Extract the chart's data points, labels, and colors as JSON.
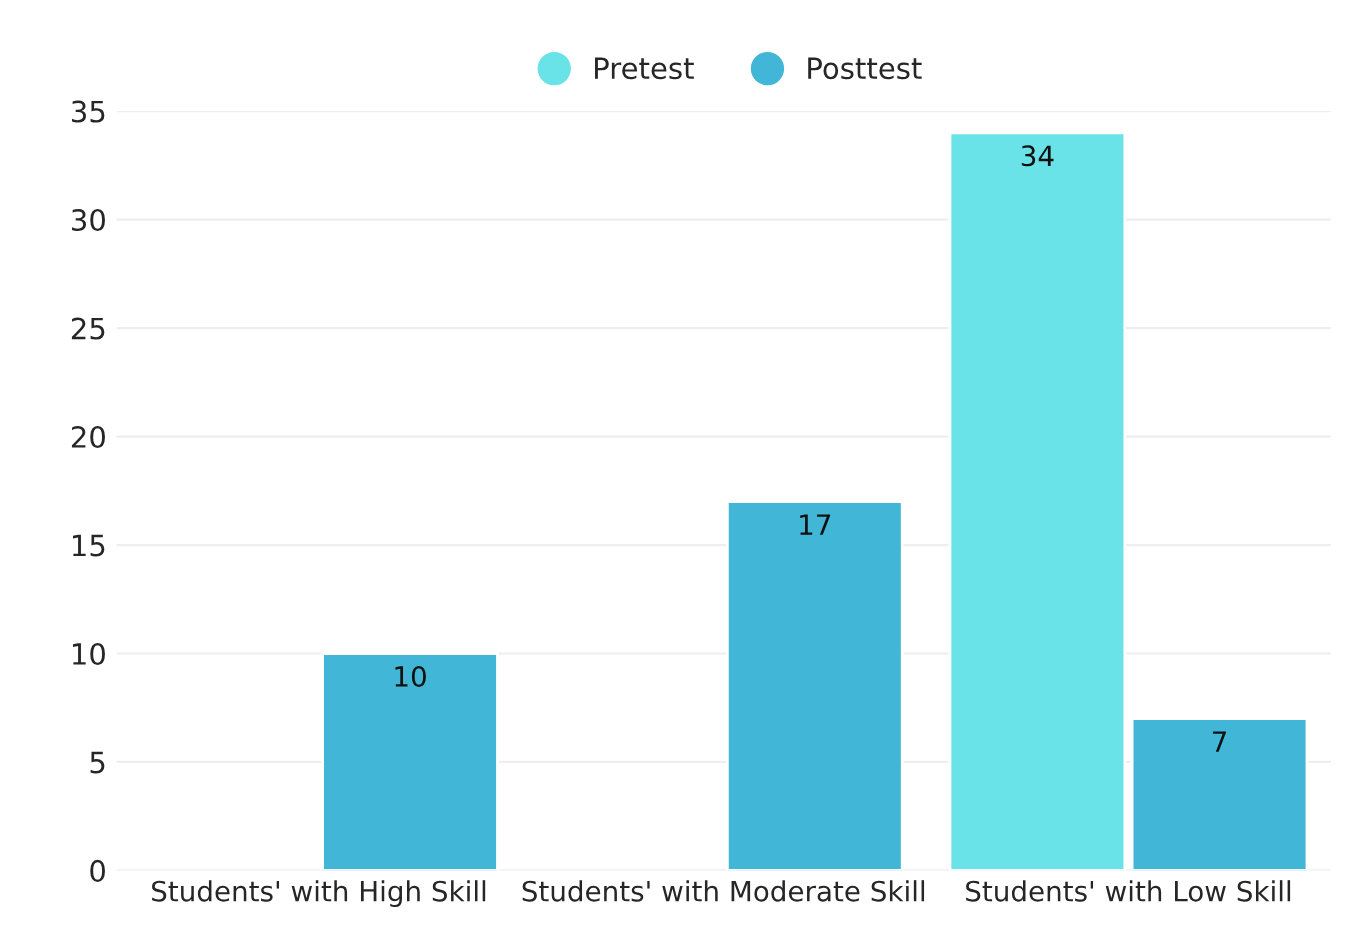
{
  "chart_data": {
    "type": "bar",
    "categories": [
      "Students' with High Skill",
      "Students' with Moderate Skill",
      "Students' with Low Skill"
    ],
    "series": [
      {
        "name": "Pretest",
        "color": "#6ae3e8",
        "values": [
          null,
          null,
          34
        ]
      },
      {
        "name": "Posttest",
        "color": "#42b6d6",
        "values": [
          10,
          17,
          7
        ]
      }
    ],
    "ylim": [
      0,
      35
    ],
    "yticks": [
      0,
      5,
      10,
      15,
      20,
      25,
      30,
      35
    ],
    "grid": "y",
    "legend": "top",
    "data_labels": true
  }
}
